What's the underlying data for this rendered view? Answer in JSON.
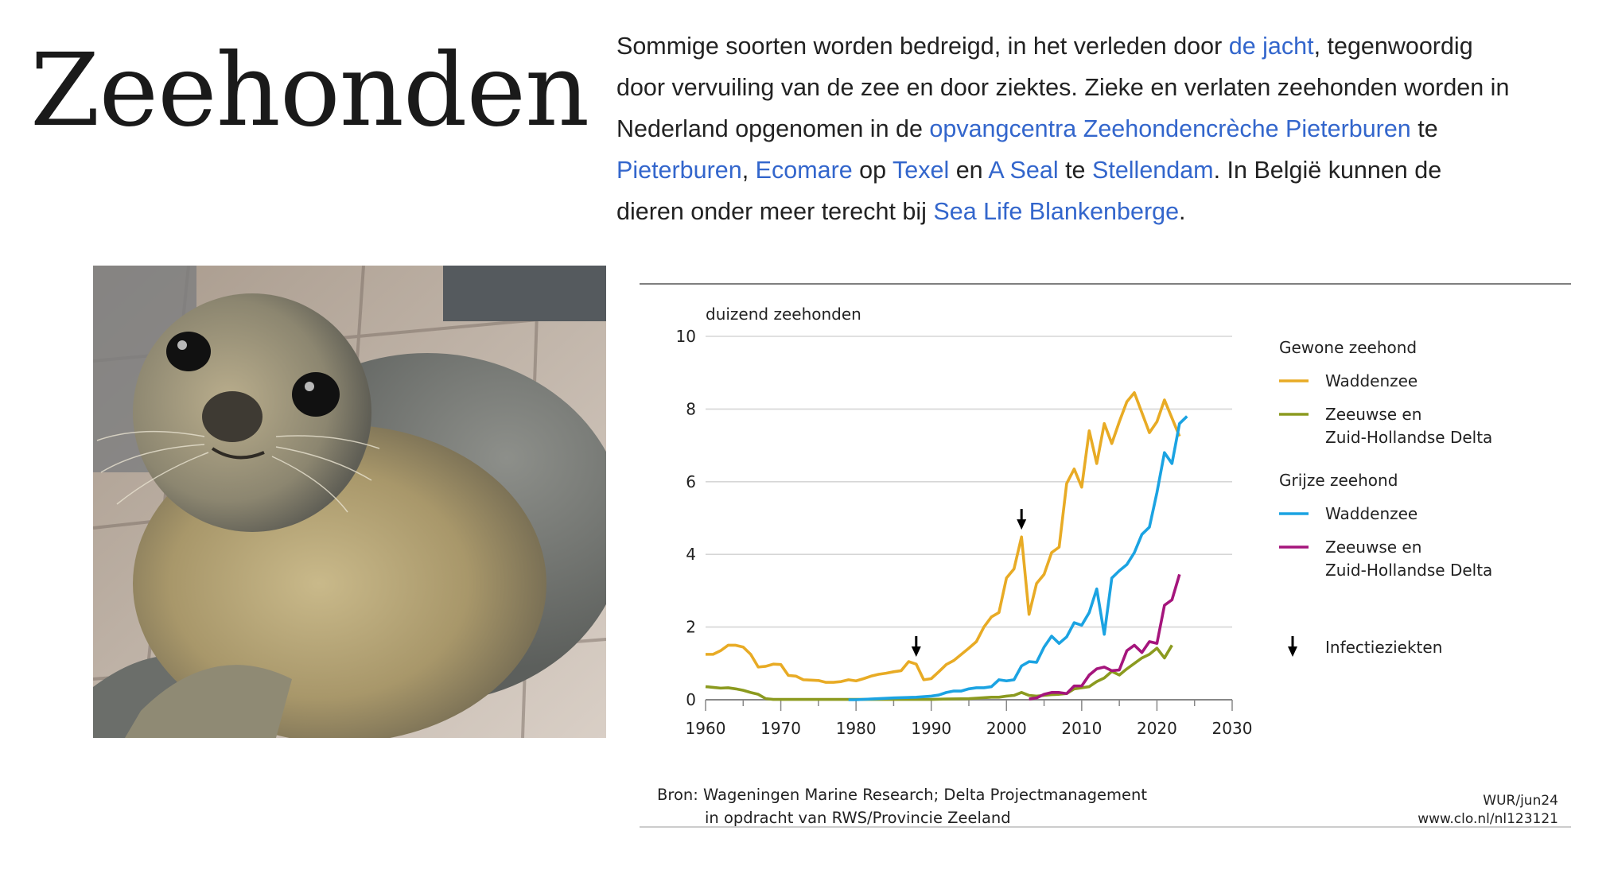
{
  "page": {
    "title": "Zeehonden",
    "paragraph_lines": [
      [
        {
          "t": "Sommige soorten worden bedreigd, in het verleden door "
        },
        {
          "t": "de jacht",
          "link": true
        },
        {
          "t": ", tegenwoordig"
        }
      ],
      [
        {
          "t": "door vervuiling van de zee en door ziektes. Zieke en verlaten zeehonden worden in"
        }
      ],
      [
        {
          "t": "Nederland opgenomen in de "
        },
        {
          "t": "opvangcentra Zeehondencrèche Pieterburen",
          "link": true
        },
        {
          "t": " te"
        }
      ],
      [
        {
          "t": "Pieterburen",
          "link": true
        },
        {
          "t": ", "
        },
        {
          "t": "Ecomare",
          "link": true
        },
        {
          "t": " op "
        },
        {
          "t": "Texel",
          "link": true
        },
        {
          "t": " en "
        },
        {
          "t": "A Seal",
          "link": true
        },
        {
          "t": " te "
        },
        {
          "t": "Stellendam",
          "link": true
        },
        {
          "t": ". In België kunnen de"
        }
      ],
      [
        {
          "t": "dieren onder meer terecht bij "
        },
        {
          "t": "Sea Life Blankenberge",
          "link": true
        },
        {
          "t": "."
        }
      ]
    ],
    "link_color": "#3366cc"
  },
  "chart_data": {
    "type": "line",
    "ylabel": "duizend zeehonden",
    "xlim": [
      1960,
      2030
    ],
    "ylim": [
      0,
      10
    ],
    "xticks": [
      "1960",
      "1970",
      "1980",
      "1990",
      "2000",
      "2010",
      "2020",
      "2030"
    ],
    "yticks": [
      "0",
      "2",
      "4",
      "6",
      "8",
      "10"
    ],
    "grid": true,
    "legend_position": "right",
    "legend_groups": [
      {
        "title": "Gewone zeehond",
        "series": [
          0,
          1
        ]
      },
      {
        "title": "Grijze zeehond",
        "series": [
          2,
          3
        ]
      }
    ],
    "series": [
      {
        "name": "Waddenzee",
        "name_lines": [
          "Waddenzee"
        ],
        "group": "Gewone zeehond",
        "color": "#e8ab25",
        "points": [
          [
            1960,
            1.25
          ],
          [
            1961,
            1.25
          ],
          [
            1962,
            1.35
          ],
          [
            1963,
            1.5
          ],
          [
            1964,
            1.5
          ],
          [
            1965,
            1.45
          ],
          [
            1966,
            1.25
          ],
          [
            1967,
            0.9
          ],
          [
            1968,
            0.92
          ],
          [
            1969,
            0.98
          ],
          [
            1970,
            0.97
          ],
          [
            1971,
            0.67
          ],
          [
            1972,
            0.65
          ],
          [
            1973,
            0.55
          ],
          [
            1974,
            0.54
          ],
          [
            1975,
            0.53
          ],
          [
            1976,
            0.48
          ],
          [
            1977,
            0.48
          ],
          [
            1978,
            0.5
          ],
          [
            1979,
            0.55
          ],
          [
            1980,
            0.52
          ],
          [
            1981,
            0.58
          ],
          [
            1982,
            0.65
          ],
          [
            1983,
            0.7
          ],
          [
            1984,
            0.73
          ],
          [
            1985,
            0.77
          ],
          [
            1986,
            0.8
          ],
          [
            1987,
            1.05
          ],
          [
            1988,
            0.98
          ],
          [
            1989,
            0.55
          ],
          [
            1990,
            0.58
          ],
          [
            1991,
            0.77
          ],
          [
            1992,
            0.97
          ],
          [
            1993,
            1.08
          ],
          [
            1994,
            1.25
          ],
          [
            1995,
            1.42
          ],
          [
            1996,
            1.6
          ],
          [
            1997,
            2.0
          ],
          [
            1998,
            2.28
          ],
          [
            1999,
            2.4
          ],
          [
            2000,
            3.35
          ],
          [
            2001,
            3.6
          ],
          [
            2002,
            4.48
          ],
          [
            2003,
            2.35
          ],
          [
            2004,
            3.2
          ],
          [
            2005,
            3.45
          ],
          [
            2006,
            4.05
          ],
          [
            2007,
            4.2
          ],
          [
            2008,
            5.95
          ],
          [
            2009,
            6.35
          ],
          [
            2010,
            5.85
          ],
          [
            2011,
            7.4
          ],
          [
            2012,
            6.5
          ],
          [
            2013,
            7.6
          ],
          [
            2014,
            7.05
          ],
          [
            2015,
            7.65
          ],
          [
            2016,
            8.2
          ],
          [
            2017,
            8.45
          ],
          [
            2018,
            7.9
          ],
          [
            2019,
            7.35
          ],
          [
            2020,
            7.65
          ],
          [
            2021,
            8.25
          ],
          [
            2022,
            7.75
          ],
          [
            2023,
            7.25
          ]
        ]
      },
      {
        "name": "Zeeuwse en Zuid-Hollandse Delta",
        "name_lines": [
          "Zeeuwse en",
          "Zuid-Hollandse Delta"
        ],
        "group": "Gewone zeehond",
        "color": "#8b9a1f",
        "points": [
          [
            1960,
            0.36
          ],
          [
            1961,
            0.34
          ],
          [
            1962,
            0.32
          ],
          [
            1963,
            0.33
          ],
          [
            1964,
            0.3
          ],
          [
            1965,
            0.26
          ],
          [
            1966,
            0.2
          ],
          [
            1967,
            0.15
          ],
          [
            1968,
            0.03
          ],
          [
            1969,
            0.01
          ],
          [
            1970,
            0.01
          ],
          [
            1975,
            0.01
          ],
          [
            1980,
            0.01
          ],
          [
            1985,
            0.01
          ],
          [
            1990,
            0.01
          ],
          [
            1992,
            0.02
          ],
          [
            1995,
            0.03
          ],
          [
            1998,
            0.07
          ],
          [
            1999,
            0.07
          ],
          [
            2000,
            0.1
          ],
          [
            2001,
            0.12
          ],
          [
            2002,
            0.2
          ],
          [
            2003,
            0.12
          ],
          [
            2004,
            0.1
          ],
          [
            2005,
            0.12
          ],
          [
            2006,
            0.14
          ],
          [
            2007,
            0.15
          ],
          [
            2008,
            0.17
          ],
          [
            2009,
            0.3
          ],
          [
            2010,
            0.33
          ],
          [
            2011,
            0.36
          ],
          [
            2012,
            0.5
          ],
          [
            2013,
            0.6
          ],
          [
            2014,
            0.78
          ],
          [
            2015,
            0.68
          ],
          [
            2016,
            0.85
          ],
          [
            2017,
            1.0
          ],
          [
            2018,
            1.15
          ],
          [
            2019,
            1.25
          ],
          [
            2020,
            1.42
          ],
          [
            2021,
            1.15
          ],
          [
            2022,
            1.5
          ]
        ]
      },
      {
        "name": "Waddenzee",
        "name_lines": [
          "Waddenzee"
        ],
        "group": "Grijze zeehond",
        "color": "#1ba3e2",
        "points": [
          [
            1979,
            0.0
          ],
          [
            1980,
            0.0
          ],
          [
            1982,
            0.02
          ],
          [
            1985,
            0.05
          ],
          [
            1988,
            0.07
          ],
          [
            1990,
            0.1
          ],
          [
            1991,
            0.13
          ],
          [
            1992,
            0.2
          ],
          [
            1993,
            0.24
          ],
          [
            1994,
            0.24
          ],
          [
            1995,
            0.3
          ],
          [
            1996,
            0.33
          ],
          [
            1997,
            0.33
          ],
          [
            1998,
            0.36
          ],
          [
            1999,
            0.55
          ],
          [
            2000,
            0.52
          ],
          [
            2001,
            0.55
          ],
          [
            2002,
            0.93
          ],
          [
            2003,
            1.05
          ],
          [
            2004,
            1.03
          ],
          [
            2005,
            1.45
          ],
          [
            2006,
            1.75
          ],
          [
            2007,
            1.55
          ],
          [
            2008,
            1.73
          ],
          [
            2009,
            2.12
          ],
          [
            2010,
            2.05
          ],
          [
            2011,
            2.4
          ],
          [
            2012,
            3.05
          ],
          [
            2013,
            1.8
          ],
          [
            2014,
            3.35
          ],
          [
            2015,
            3.55
          ],
          [
            2016,
            3.72
          ],
          [
            2017,
            4.05
          ],
          [
            2018,
            4.55
          ],
          [
            2019,
            4.75
          ],
          [
            2020,
            5.7
          ],
          [
            2021,
            6.8
          ],
          [
            2022,
            6.5
          ],
          [
            2023,
            7.6
          ],
          [
            2024,
            7.8
          ]
        ]
      },
      {
        "name": "Zeeuwse en Zuid-Hollandse Delta",
        "name_lines": [
          "Zeeuwse en",
          "Zuid-Hollandse Delta"
        ],
        "group": "Grijze zeehond",
        "color": "#a5157c",
        "points": [
          [
            2003,
            0.02
          ],
          [
            2004,
            0.05
          ],
          [
            2005,
            0.15
          ],
          [
            2006,
            0.2
          ],
          [
            2007,
            0.2
          ],
          [
            2008,
            0.17
          ],
          [
            2009,
            0.38
          ],
          [
            2010,
            0.38
          ],
          [
            2011,
            0.68
          ],
          [
            2012,
            0.85
          ],
          [
            2013,
            0.9
          ],
          [
            2014,
            0.8
          ],
          [
            2015,
            0.82
          ],
          [
            2016,
            1.35
          ],
          [
            2017,
            1.5
          ],
          [
            2018,
            1.3
          ],
          [
            2019,
            1.6
          ],
          [
            2020,
            1.55
          ],
          [
            2021,
            2.6
          ],
          [
            2022,
            2.75
          ],
          [
            2023,
            3.45
          ]
        ]
      }
    ],
    "annotations": {
      "label": "Infectieziekten",
      "arrows": [
        {
          "x": 1988,
          "y": 1.05
        },
        {
          "x": 2002,
          "y": 4.55
        }
      ]
    },
    "source_lines": [
      "Bron: Wageningen Marine Research; Delta Projectmanagement",
      "in opdracht van RWS/Provincie Zeeland"
    ],
    "credit_lines": [
      "WUR/jun24",
      "www.clo.nl/nl123121"
    ]
  }
}
